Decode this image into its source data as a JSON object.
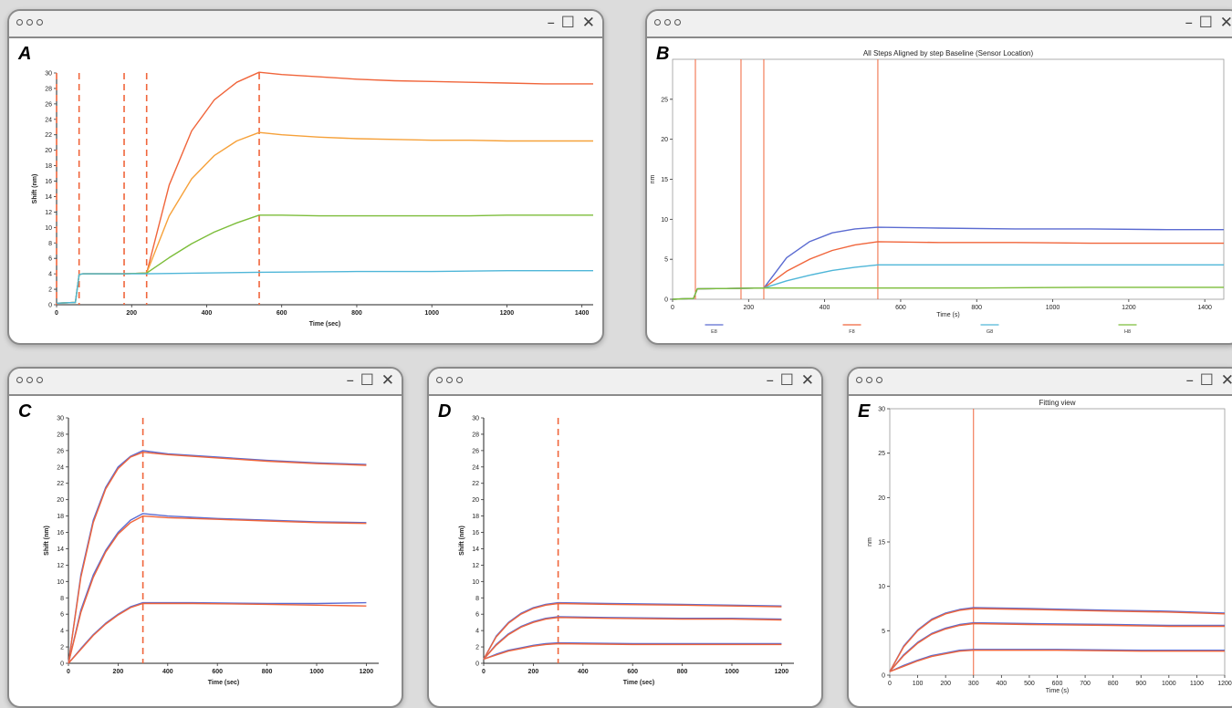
{
  "window_controls": {
    "dots": "○○○",
    "minimize": "–",
    "maximize": "☐",
    "close": "✕"
  },
  "chart_data": [
    {
      "panel": "A",
      "type": "line",
      "title": "",
      "xlabel": "Time (sec)",
      "ylabel": "Shift (nm)",
      "xlim": [
        0,
        1430
      ],
      "ylim": [
        0,
        30
      ],
      "xticks": [
        0,
        200,
        400,
        600,
        800,
        1000,
        1200,
        1400
      ],
      "yticks": [
        0,
        2,
        4,
        6,
        8,
        10,
        12,
        14,
        16,
        18,
        20,
        22,
        24,
        26,
        28,
        30
      ],
      "vlines": [
        0,
        60,
        180,
        240,
        540
      ],
      "series": [
        {
          "color": "#f0653b",
          "x": [
            0,
            50,
            60,
            70,
            90,
            180,
            240,
            300,
            360,
            420,
            480,
            540,
            600,
            700,
            800,
            900,
            1000,
            1100,
            1200,
            1300,
            1430
          ],
          "y": [
            0.2,
            0.3,
            3.9,
            4.0,
            4.0,
            4.0,
            4.1,
            15.5,
            22.5,
            26.5,
            28.8,
            30.1,
            29.8,
            29.5,
            29.2,
            29.0,
            28.9,
            28.8,
            28.7,
            28.6,
            28.6
          ]
        },
        {
          "color": "#f6a13a",
          "x": [
            0,
            50,
            60,
            70,
            90,
            180,
            240,
            300,
            360,
            420,
            480,
            540,
            600,
            700,
            800,
            900,
            1000,
            1100,
            1200,
            1300,
            1430
          ],
          "y": [
            0.2,
            0.3,
            3.9,
            4.0,
            4.0,
            4.0,
            4.1,
            11.5,
            16.3,
            19.3,
            21.2,
            22.3,
            22.0,
            21.7,
            21.5,
            21.4,
            21.3,
            21.3,
            21.2,
            21.2,
            21.2
          ]
        },
        {
          "color": "#7cbd3a",
          "x": [
            0,
            50,
            60,
            70,
            90,
            180,
            240,
            300,
            360,
            420,
            480,
            540,
            600,
            700,
            800,
            900,
            1000,
            1100,
            1200,
            1300,
            1430
          ],
          "y": [
            0.2,
            0.3,
            3.9,
            4.0,
            4.0,
            4.0,
            4.1,
            6.1,
            7.9,
            9.4,
            10.6,
            11.6,
            11.6,
            11.5,
            11.5,
            11.5,
            11.5,
            11.5,
            11.6,
            11.6,
            11.6
          ]
        },
        {
          "color": "#4fb6d8",
          "x": [
            0,
            50,
            60,
            70,
            90,
            180,
            240,
            540,
            800,
            1000,
            1200,
            1430
          ],
          "y": [
            0.2,
            0.3,
            3.9,
            4.0,
            4.0,
            4.0,
            4.0,
            4.2,
            4.3,
            4.3,
            4.4,
            4.4
          ]
        }
      ]
    },
    {
      "panel": "B",
      "type": "line",
      "title": "All Steps Aligned by step Baseline (Sensor Location)",
      "xlabel": "Time (s)",
      "ylabel": "nm",
      "xlim": [
        0,
        1450
      ],
      "ylim": [
        0,
        30
      ],
      "xticks": [
        0,
        200,
        400,
        600,
        800,
        1000,
        1200,
        1400
      ],
      "yticks": [
        0,
        5,
        10,
        15,
        20,
        25
      ],
      "vlines": [
        60,
        180,
        240,
        540
      ],
      "legend": [
        "E8",
        "F8",
        "G8",
        "H8"
      ],
      "series": [
        {
          "name": "E8",
          "color": "#5b6bd1",
          "x": [
            0,
            55,
            65,
            240,
            300,
            360,
            420,
            480,
            540,
            700,
            900,
            1100,
            1300,
            1450
          ],
          "y": [
            0,
            0.1,
            1.3,
            1.4,
            5.2,
            7.2,
            8.3,
            8.8,
            9.0,
            8.9,
            8.8,
            8.8,
            8.7,
            8.7
          ]
        },
        {
          "name": "F8",
          "color": "#f0653b",
          "x": [
            0,
            55,
            65,
            240,
            300,
            360,
            420,
            480,
            540,
            700,
            900,
            1100,
            1300,
            1450
          ],
          "y": [
            0,
            0.1,
            1.3,
            1.4,
            3.5,
            5.0,
            6.1,
            6.8,
            7.2,
            7.1,
            7.1,
            7.0,
            7.0,
            7.0
          ]
        },
        {
          "name": "G8",
          "color": "#4fb6d8",
          "x": [
            0,
            55,
            65,
            240,
            300,
            360,
            420,
            480,
            540,
            700,
            900,
            1100,
            1300,
            1450
          ],
          "y": [
            0,
            0.1,
            1.3,
            1.4,
            2.3,
            3.0,
            3.6,
            4.0,
            4.3,
            4.3,
            4.3,
            4.3,
            4.3,
            4.3
          ]
        },
        {
          "name": "H8",
          "color": "#7cbd3a",
          "x": [
            0,
            55,
            65,
            240,
            540,
            800,
            1100,
            1450
          ],
          "y": [
            0,
            0.1,
            1.3,
            1.4,
            1.4,
            1.4,
            1.5,
            1.5
          ]
        }
      ]
    },
    {
      "panel": "C",
      "type": "line",
      "title": "",
      "xlabel": "Time (sec)",
      "ylabel": "Shift (nm)",
      "xlim": [
        0,
        1250
      ],
      "ylim": [
        0,
        30
      ],
      "xticks": [
        0,
        200,
        400,
        600,
        800,
        1000,
        1200
      ],
      "yticks": [
        0,
        2,
        4,
        6,
        8,
        10,
        12,
        14,
        16,
        18,
        20,
        22,
        24,
        26,
        28,
        30
      ],
      "vlines": [
        300
      ],
      "series": [
        {
          "color": "#5b6bd1",
          "x": [
            0,
            50,
            100,
            150,
            200,
            250,
            300,
            400,
            600,
            800,
            1000,
            1200
          ],
          "y": [
            0,
            10.8,
            17.5,
            21.5,
            24.0,
            25.3,
            26.0,
            25.6,
            25.2,
            24.8,
            24.5,
            24.3
          ]
        },
        {
          "color": "#f0653b",
          "x": [
            0,
            50,
            100,
            150,
            200,
            250,
            300,
            400,
            600,
            800,
            1000,
            1200
          ],
          "y": [
            0,
            10.5,
            17.2,
            21.3,
            23.8,
            25.2,
            25.8,
            25.5,
            25.1,
            24.7,
            24.4,
            24.2
          ]
        },
        {
          "color": "#5b6bd1",
          "x": [
            0,
            50,
            100,
            150,
            200,
            250,
            300,
            400,
            600,
            800,
            1000,
            1200
          ],
          "y": [
            0,
            6.5,
            10.8,
            13.8,
            16.0,
            17.5,
            18.3,
            18.0,
            17.7,
            17.5,
            17.3,
            17.2
          ]
        },
        {
          "color": "#f0653b",
          "x": [
            0,
            50,
            100,
            150,
            200,
            250,
            300,
            400,
            600,
            800,
            1000,
            1200
          ],
          "y": [
            0,
            6.2,
            10.5,
            13.6,
            15.8,
            17.2,
            18.0,
            17.8,
            17.6,
            17.4,
            17.2,
            17.1
          ]
        },
        {
          "color": "#5b6bd1",
          "x": [
            0,
            50,
            100,
            150,
            200,
            250,
            300,
            500,
            800,
            1000,
            1200
          ],
          "y": [
            0,
            1.8,
            3.5,
            4.9,
            6.0,
            6.9,
            7.4,
            7.4,
            7.3,
            7.3,
            7.4
          ]
        },
        {
          "color": "#f0653b",
          "x": [
            0,
            50,
            100,
            150,
            200,
            250,
            300,
            500,
            800,
            1000,
            1200
          ],
          "y": [
            0,
            1.7,
            3.4,
            4.8,
            5.9,
            6.8,
            7.3,
            7.3,
            7.2,
            7.1,
            7.0
          ]
        }
      ]
    },
    {
      "panel": "D",
      "type": "line",
      "title": "",
      "xlabel": "Time (sec)",
      "ylabel": "Shift (nm)",
      "xlim": [
        0,
        1250
      ],
      "ylim": [
        0,
        30
      ],
      "xticks": [
        0,
        200,
        400,
        600,
        800,
        1000,
        1200
      ],
      "yticks": [
        0,
        2,
        4,
        6,
        8,
        10,
        12,
        14,
        16,
        18,
        20,
        22,
        24,
        26,
        28,
        30
      ],
      "vlines": [
        300
      ],
      "series": [
        {
          "color": "#5b6bd1",
          "x": [
            0,
            50,
            100,
            150,
            200,
            250,
            300,
            500,
            800,
            1000,
            1200
          ],
          "y": [
            0.5,
            3.3,
            5.0,
            6.1,
            6.8,
            7.2,
            7.4,
            7.3,
            7.2,
            7.1,
            7.0
          ]
        },
        {
          "color": "#f0653b",
          "x": [
            0,
            50,
            100,
            150,
            200,
            250,
            300,
            500,
            800,
            1000,
            1200
          ],
          "y": [
            0.5,
            3.2,
            4.9,
            6.0,
            6.7,
            7.1,
            7.3,
            7.2,
            7.1,
            7.0,
            6.9
          ]
        },
        {
          "color": "#5b6bd1",
          "x": [
            0,
            50,
            100,
            150,
            200,
            250,
            300,
            500,
            800,
            1000,
            1200
          ],
          "y": [
            0.5,
            2.3,
            3.6,
            4.5,
            5.1,
            5.5,
            5.7,
            5.6,
            5.5,
            5.5,
            5.4
          ]
        },
        {
          "color": "#f0653b",
          "x": [
            0,
            50,
            100,
            150,
            200,
            250,
            300,
            500,
            800,
            1000,
            1200
          ],
          "y": [
            0.5,
            2.2,
            3.5,
            4.4,
            5.0,
            5.4,
            5.6,
            5.5,
            5.4,
            5.4,
            5.3
          ]
        },
        {
          "color": "#5b6bd1",
          "x": [
            0,
            50,
            100,
            150,
            200,
            250,
            300,
            600,
            900,
            1200
          ],
          "y": [
            0.5,
            1.1,
            1.6,
            1.9,
            2.2,
            2.4,
            2.5,
            2.4,
            2.4,
            2.4
          ]
        },
        {
          "color": "#f0653b",
          "x": [
            0,
            50,
            100,
            150,
            200,
            250,
            300,
            600,
            900,
            1200
          ],
          "y": [
            0.5,
            1.0,
            1.5,
            1.8,
            2.1,
            2.3,
            2.4,
            2.3,
            2.3,
            2.3
          ]
        }
      ]
    },
    {
      "panel": "E",
      "type": "line",
      "title": "Fitting view",
      "xlabel": "Time (s)",
      "ylabel": "nm",
      "xlim": [
        0,
        1200
      ],
      "ylim": [
        0,
        30
      ],
      "xticks": [
        0,
        100,
        200,
        300,
        400,
        500,
        600,
        700,
        800,
        900,
        1000,
        1100,
        1200
      ],
      "yticks": [
        0,
        5,
        10,
        15,
        20,
        25,
        30
      ],
      "vlines": [
        300
      ],
      "series": [
        {
          "color": "#5b6bd1",
          "x": [
            0,
            50,
            100,
            150,
            200,
            250,
            300,
            500,
            800,
            1000,
            1200
          ],
          "y": [
            0.4,
            3.3,
            5.1,
            6.3,
            7.0,
            7.4,
            7.6,
            7.5,
            7.3,
            7.2,
            7.0
          ]
        },
        {
          "color": "#f0653b",
          "x": [
            0,
            50,
            100,
            150,
            200,
            250,
            300,
            500,
            800,
            1000,
            1200
          ],
          "y": [
            0.4,
            3.2,
            5.0,
            6.2,
            6.9,
            7.3,
            7.5,
            7.4,
            7.2,
            7.1,
            6.9
          ]
        },
        {
          "color": "#5b6bd1",
          "x": [
            0,
            50,
            100,
            150,
            200,
            250,
            300,
            500,
            800,
            1000,
            1200
          ],
          "y": [
            0.4,
            2.3,
            3.7,
            4.7,
            5.3,
            5.7,
            5.9,
            5.8,
            5.7,
            5.6,
            5.6
          ]
        },
        {
          "color": "#f0653b",
          "x": [
            0,
            50,
            100,
            150,
            200,
            250,
            300,
            500,
            800,
            1000,
            1200
          ],
          "y": [
            0.4,
            2.2,
            3.6,
            4.6,
            5.2,
            5.6,
            5.8,
            5.7,
            5.6,
            5.5,
            5.5
          ]
        },
        {
          "color": "#5b6bd1",
          "x": [
            0,
            50,
            100,
            150,
            200,
            250,
            300,
            600,
            900,
            1200
          ],
          "y": [
            0.4,
            1.1,
            1.7,
            2.2,
            2.5,
            2.8,
            2.9,
            2.9,
            2.8,
            2.8
          ]
        },
        {
          "color": "#f0653b",
          "x": [
            0,
            50,
            100,
            150,
            200,
            250,
            300,
            600,
            900,
            1200
          ],
          "y": [
            0.4,
            1.0,
            1.6,
            2.1,
            2.4,
            2.7,
            2.8,
            2.8,
            2.7,
            2.7
          ]
        }
      ]
    }
  ]
}
